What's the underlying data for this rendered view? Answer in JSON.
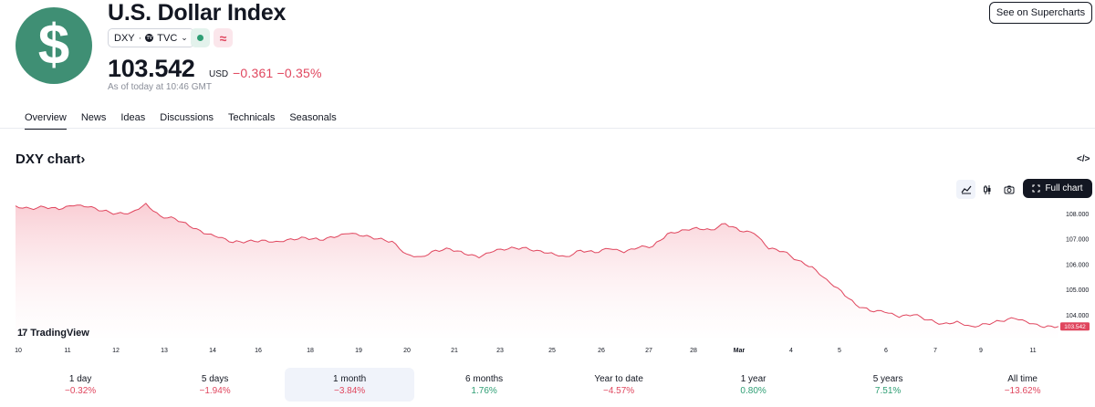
{
  "header": {
    "logo_symbol": "$",
    "title": "U.S. Dollar Index",
    "symbol": "DXY",
    "separator": "·",
    "exchange_badge": "TV",
    "exchange": "TVC",
    "dropdown_icon": "chevron-down-icon",
    "market_status_icon": "market-open-dot-icon",
    "wave_icon": "≈",
    "price": "103.542",
    "currency": "USD",
    "change_abs": "−0.361",
    "change_pct": "−0.35%",
    "as_of": "As of today at 10:46 GMT",
    "supercharts_button": "See on Supercharts"
  },
  "tabs": [
    "Overview",
    "News",
    "Ideas",
    "Discussions",
    "Technicals",
    "Seasonals"
  ],
  "chart_section": {
    "title": "DXY chart›",
    "embed_icon": "</>",
    "full_chart_button": "Full chart",
    "brand": "TradingView",
    "current_price_label": "103.542"
  },
  "colors": {
    "accent_green": "#3f8f74",
    "line_red": "#e0465e",
    "positive": "#2e9e74",
    "negative": "#e0465e"
  },
  "chart_data": {
    "type": "area",
    "x_tick_labels": [
      "10",
      "11",
      "12",
      "13",
      "14",
      "16",
      "18",
      "19",
      "20",
      "21",
      "23",
      "25",
      "26",
      "27",
      "28",
      "Mar",
      "4",
      "5",
      "6",
      "7",
      "9",
      "11"
    ],
    "y_tick_labels": [
      "108.000",
      "107.000",
      "106.000",
      "105.000",
      "104.000"
    ],
    "ylim": [
      103.1,
      108.5
    ],
    "grid": false,
    "x": [
      0,
      1,
      2,
      3,
      4,
      5,
      6,
      7,
      8,
      9,
      10,
      11,
      12,
      13,
      14,
      15,
      16,
      17,
      18,
      19,
      20,
      21,
      22,
      23,
      24,
      25,
      26,
      27,
      28,
      29,
      30,
      31,
      32,
      33,
      34,
      35,
      36,
      37,
      38,
      39,
      40,
      41,
      42,
      43,
      44,
      45,
      46,
      47,
      48,
      49,
      50,
      51,
      52,
      53,
      54,
      55,
      56,
      57,
      58,
      59,
      60,
      61,
      62,
      63,
      64,
      65,
      66,
      67,
      68,
      69,
      70,
      71,
      72
    ],
    "values": [
      108.3,
      108.2,
      108.25,
      108.15,
      108.3,
      108.25,
      108.1,
      108.0,
      108.05,
      108.4,
      107.9,
      107.8,
      107.5,
      107.2,
      107.05,
      106.85,
      106.9,
      106.95,
      106.9,
      107.0,
      107.05,
      106.95,
      107.05,
      107.2,
      107.1,
      107.0,
      106.9,
      106.4,
      106.3,
      106.55,
      106.6,
      106.4,
      106.25,
      106.5,
      106.6,
      106.65,
      106.55,
      106.45,
      106.3,
      106.55,
      106.45,
      106.6,
      106.45,
      106.65,
      106.7,
      107.2,
      107.35,
      107.45,
      107.35,
      107.6,
      107.3,
      107.2,
      106.6,
      106.5,
      106.15,
      105.9,
      105.4,
      104.95,
      104.4,
      104.15,
      104.1,
      103.9,
      104.0,
      103.8,
      103.65,
      103.75,
      103.55,
      103.65,
      103.75,
      103.85,
      103.65,
      103.5,
      103.54
    ]
  },
  "periods": [
    {
      "label": "1 day",
      "value": "−0.32%",
      "dir": "neg"
    },
    {
      "label": "5 days",
      "value": "−1.94%",
      "dir": "neg"
    },
    {
      "label": "1 month",
      "value": "−3.84%",
      "dir": "neg"
    },
    {
      "label": "6 months",
      "value": "1.76%",
      "dir": "pos"
    },
    {
      "label": "Year to date",
      "value": "−4.57%",
      "dir": "neg"
    },
    {
      "label": "1 year",
      "value": "0.80%",
      "dir": "pos"
    },
    {
      "label": "5 years",
      "value": "7.51%",
      "dir": "pos"
    },
    {
      "label": "All time",
      "value": "−13.62%",
      "dir": "neg"
    }
  ],
  "active_period": "1 month"
}
